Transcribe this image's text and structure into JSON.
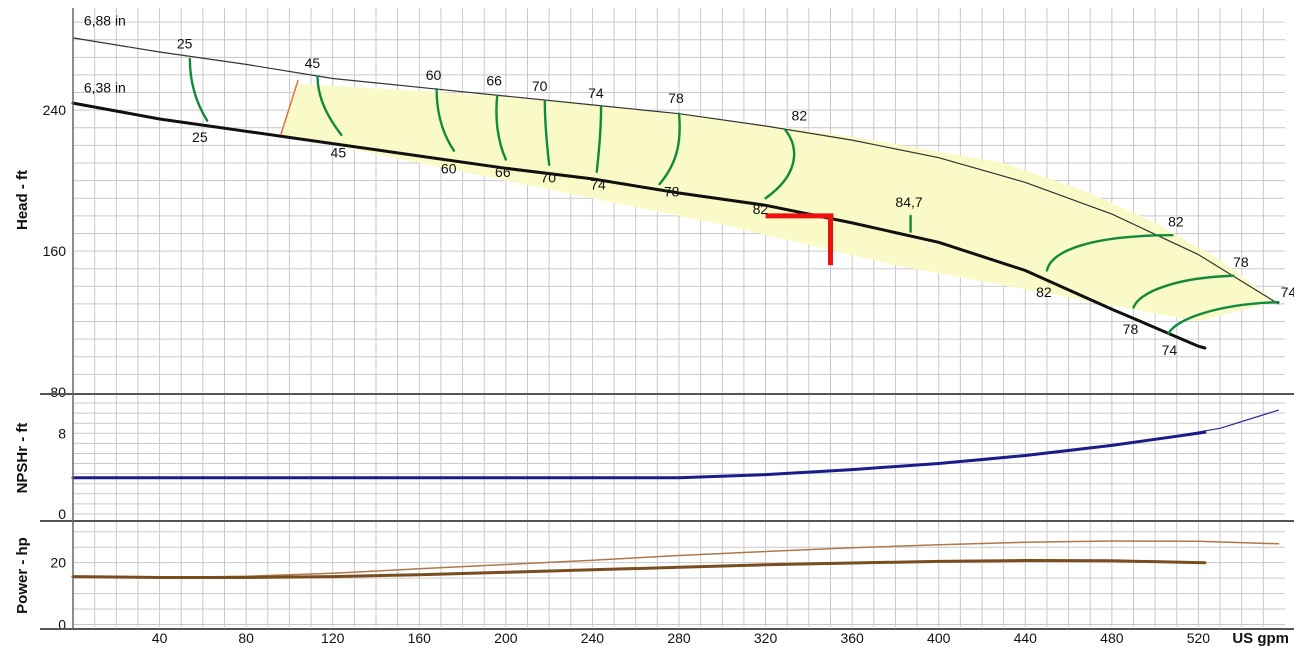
{
  "chart_data": {
    "type": "line",
    "x_unit": "US gpm",
    "x_ticks": [
      40,
      80,
      120,
      160,
      200,
      240,
      280,
      320,
      360,
      400,
      440,
      480,
      520
    ],
    "x_range": [
      0,
      560
    ],
    "panels": [
      {
        "id": "head",
        "ylabel": "Head - ft",
        "yrange": [
          80,
          298
        ],
        "y_ticks": [
          80,
          160,
          240
        ],
        "region": {
          "name": "allowable operating region",
          "color": "#fafac8",
          "points": [
            [
              96,
              226
            ],
            [
              103,
              255
            ],
            [
              200,
              248
            ],
            [
              280,
              238
            ],
            [
              360,
              225
            ],
            [
              430,
              210
            ],
            [
              470,
              193
            ],
            [
              500,
              176
            ],
            [
              530,
              155
            ],
            [
              555,
              132
            ],
            [
              554,
              131
            ],
            [
              520,
              120
            ],
            [
              450,
              136
            ],
            [
              380,
              152
            ],
            [
              300,
              175
            ],
            [
              200,
              200
            ],
            [
              96,
              226
            ]
          ]
        },
        "series": [
          {
            "name": "6,88 in",
            "color": "#333333",
            "width": 1.2,
            "points": [
              [
                0,
                281
              ],
              [
                40,
                273
              ],
              [
                80,
                266
              ],
              [
                120,
                258
              ],
              [
                160,
                253
              ],
              [
                200,
                248
              ],
              [
                240,
                243
              ],
              [
                280,
                238
              ],
              [
                320,
                231
              ],
              [
                360,
                223
              ],
              [
                400,
                213
              ],
              [
                440,
                199
              ],
              [
                480,
                181
              ],
              [
                520,
                158
              ],
              [
                557,
                130
              ]
            ]
          },
          {
            "name": "6,38 in",
            "color": "#111111",
            "width": 3,
            "points": [
              [
                0,
                244
              ],
              [
                40,
                235
              ],
              [
                80,
                228
              ],
              [
                120,
                221
              ],
              [
                160,
                214
              ],
              [
                200,
                207
              ],
              [
                240,
                201
              ],
              [
                280,
                193
              ],
              [
                320,
                186
              ],
              [
                360,
                176
              ],
              [
                400,
                165
              ],
              [
                440,
                149
              ],
              [
                480,
                127
              ],
              [
                520,
                106
              ],
              [
                523,
                105
              ]
            ]
          }
        ],
        "efficiency_curves": [
          {
            "label": "25",
            "points": [
              [
                54,
                269
              ],
              [
                54,
                255
              ],
              [
                57,
                244
              ],
              [
                62,
                234
              ]
            ]
          },
          {
            "label": "45",
            "points": [
              [
                113,
                259
              ],
              [
                113,
                248
              ],
              [
                117,
                237
              ],
              [
                124,
                226
              ]
            ]
          },
          {
            "label": "60",
            "points": [
              [
                168,
                252
              ],
              [
                168,
                240
              ],
              [
                170,
                228
              ],
              [
                176,
                217
              ]
            ]
          },
          {
            "label": "66",
            "points": [
              [
                196,
                248
              ],
              [
                195,
                236
              ],
              [
                196,
                223
              ],
              [
                200,
                212
              ]
            ]
          },
          {
            "label": "70",
            "points": [
              [
                218,
                245
              ],
              [
                218,
                233
              ],
              [
                219,
                220
              ],
              [
                220,
                209
              ]
            ]
          },
          {
            "label": "74",
            "points": [
              [
                244,
                242
              ],
              [
                244,
                230
              ],
              [
                243,
                216
              ],
              [
                242,
                205
              ]
            ]
          },
          {
            "label": "78",
            "points": [
              [
                280,
                238
              ],
              [
                281,
                224
              ],
              [
                280,
                211
              ],
              [
                271,
                198
              ]
            ]
          },
          {
            "label": "82",
            "points": [
              [
                329,
                229
              ],
              [
                336,
                218
              ],
              [
                335,
                203
              ],
              [
                320,
                190
              ]
            ]
          },
          {
            "label": "84,7",
            "points": [
              [
                387,
                180
              ],
              [
                387,
                171
              ]
            ]
          },
          {
            "label": "82",
            "points": [
              [
                508,
                169
              ],
              [
                470,
                169
              ],
              [
                452,
                160
              ],
              [
                450,
                149
              ]
            ]
          },
          {
            "label": "78",
            "points": [
              [
                536,
                146
              ],
              [
                510,
                145
              ],
              [
                493,
                137
              ],
              [
                490,
                128
              ]
            ]
          },
          {
            "label": "74",
            "points": [
              [
                557,
                131
              ],
              [
                530,
                130
              ],
              [
                510,
                122
              ],
              [
                506,
                113
              ]
            ]
          }
        ],
        "orange_line": {
          "color": "#e07040",
          "points": [
            [
              96,
              226
            ],
            [
              104,
              257
            ]
          ]
        },
        "duty_point": {
          "color": "#ee1111",
          "x": 350,
          "y": 180,
          "h_from": 320,
          "v_to": 152
        },
        "labels": [
          {
            "text": "6,88 in",
            "x": 5,
            "y": 288
          },
          {
            "text": "6,38 in",
            "x": 5,
            "y": 250
          },
          {
            "text": "25",
            "x": 48,
            "y": 275
          },
          {
            "text": "45",
            "x": 107,
            "y": 264
          },
          {
            "text": "60",
            "x": 163,
            "y": 257
          },
          {
            "text": "66",
            "x": 191,
            "y": 254
          },
          {
            "text": "70",
            "x": 212,
            "y": 251
          },
          {
            "text": "74",
            "x": 238,
            "y": 247
          },
          {
            "text": "78",
            "x": 275,
            "y": 244
          },
          {
            "text": "82",
            "x": 332,
            "y": 234
          },
          {
            "text": "25",
            "x": 55,
            "y": 222
          },
          {
            "text": "45",
            "x": 119,
            "y": 213
          },
          {
            "text": "60",
            "x": 170,
            "y": 204
          },
          {
            "text": "66",
            "x": 195,
            "y": 202
          },
          {
            "text": "70",
            "x": 216,
            "y": 199
          },
          {
            "text": "74",
            "x": 239,
            "y": 195
          },
          {
            "text": "78",
            "x": 273,
            "y": 191
          },
          {
            "text": "82",
            "x": 314,
            "y": 181
          },
          {
            "text": "84,7",
            "x": 380,
            "y": 185
          },
          {
            "text": "82",
            "x": 506,
            "y": 174
          },
          {
            "text": "78",
            "x": 536,
            "y": 151
          },
          {
            "text": "74",
            "x": 558,
            "y": 134
          },
          {
            "text": "82",
            "x": 445,
            "y": 134
          },
          {
            "text": "78",
            "x": 485,
            "y": 113
          },
          {
            "text": "74",
            "x": 503,
            "y": 101
          }
        ]
      },
      {
        "id": "npsh",
        "ylabel": "NPSHr - ft",
        "yrange": [
          -0.5,
          11.6
        ],
        "y_ticks": [
          0,
          8
        ],
        "series": [
          {
            "name": "6,88 in",
            "color": "#2b2c9a",
            "width": 1.2,
            "points": [
              [
                300,
                3.7
              ],
              [
                360,
                4.4
              ],
              [
                420,
                5.3
              ],
              [
                460,
                6.2
              ],
              [
                500,
                7.4
              ],
              [
                530,
                8.5
              ],
              [
                557,
                10.3
              ]
            ]
          },
          {
            "name": "6,38 in",
            "color": "#1b1c8a",
            "width": 3,
            "points": [
              [
                0,
                3.6
              ],
              [
                280,
                3.6
              ],
              [
                320,
                3.9
              ],
              [
                360,
                4.4
              ],
              [
                400,
                5.0
              ],
              [
                440,
                5.8
              ],
              [
                480,
                6.8
              ],
              [
                523,
                8.1
              ]
            ]
          }
        ]
      },
      {
        "id": "power",
        "ylabel": "Power - hp",
        "yrange": [
          -0.8,
          32.5
        ],
        "y_ticks": [
          0,
          20
        ],
        "series": [
          {
            "name": "6,88 in",
            "color": "#b07848",
            "width": 1.5,
            "points": [
              [
                0,
                15.5
              ],
              [
                40,
                15.2
              ],
              [
                80,
                15.6
              ],
              [
                120,
                16.6
              ],
              [
                160,
                18.0
              ],
              [
                200,
                19.4
              ],
              [
                240,
                20.8
              ],
              [
                280,
                22.3
              ],
              [
                320,
                23.6
              ],
              [
                360,
                24.8
              ],
              [
                400,
                25.8
              ],
              [
                440,
                26.6
              ],
              [
                480,
                27.0
              ],
              [
                520,
                26.9
              ],
              [
                557,
                26.1
              ]
            ]
          },
          {
            "name": "6,38 in",
            "color": "#7a4d1e",
            "width": 3,
            "points": [
              [
                0,
                15.5
              ],
              [
                40,
                15.2
              ],
              [
                80,
                15.2
              ],
              [
                120,
                15.5
              ],
              [
                160,
                16.1
              ],
              [
                200,
                16.9
              ],
              [
                240,
                17.7
              ],
              [
                280,
                18.5
              ],
              [
                320,
                19.3
              ],
              [
                360,
                19.9
              ],
              [
                400,
                20.4
              ],
              [
                440,
                20.7
              ],
              [
                480,
                20.6
              ],
              [
                523,
                20.0
              ]
            ]
          }
        ]
      }
    ]
  }
}
